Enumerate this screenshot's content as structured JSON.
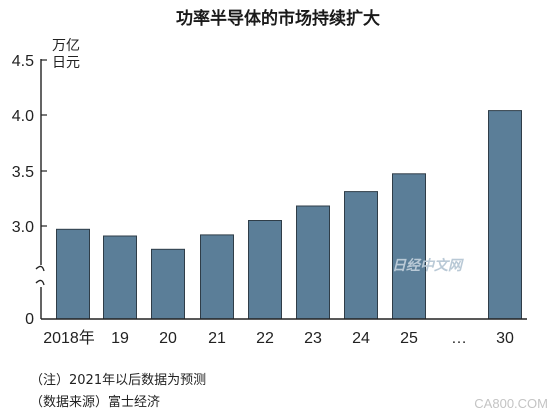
{
  "chart_data": {
    "type": "bar",
    "title": "功率半导体的市场持续扩大",
    "unit": [
      "万亿",
      "日元"
    ],
    "categories": [
      "2018年",
      "19",
      "20",
      "21",
      "22",
      "23",
      "24",
      "25",
      "30"
    ],
    "values": [
      2.97,
      2.91,
      2.79,
      2.92,
      3.05,
      3.18,
      3.31,
      3.47,
      4.04
    ],
    "gap_label": "…",
    "yticks": [
      "0",
      "3.0",
      "3.5",
      "4.0",
      "4.5"
    ],
    "ylim": [
      0,
      4.5
    ],
    "axis_break": true,
    "bar_color": "#5b7e98",
    "bar_edge_color": "#2f3d48",
    "grid": false
  },
  "notes": {
    "line1": "（注）2021年以后数据为预测",
    "line2": "（数据来源）富士经济"
  },
  "watermark": {
    "text": "日经中文网",
    "corner": "CA800.COM"
  }
}
